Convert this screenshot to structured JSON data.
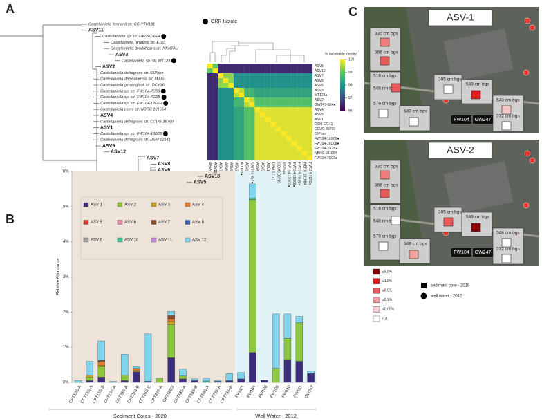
{
  "panel_labels": [
    "A",
    "B",
    "C"
  ],
  "tree": {
    "legend": "ORR Isolate",
    "leaves": [
      {
        "text": "Castellaniella fermenti str. CC-YTH191",
        "color": "#222222",
        "orr": false
      },
      {
        "text": "ASV11",
        "color": "#c58bd8",
        "orr": false
      },
      {
        "text": "Castellaniella sp. str. GW247-6E4",
        "color": "#222222",
        "orr": true
      },
      {
        "text": "Castellaniella hirudinis str. E103",
        "color": "#222222",
        "orr": false
      },
      {
        "text": "Castellaniella denitrificans str. NKNTAU",
        "color": "#222222",
        "orr": false
      },
      {
        "text": "ASV3",
        "color": "#e0a020",
        "orr": false
      },
      {
        "text": "Castellaniella sp. str. MT123",
        "color": "#222222",
        "orr": true
      },
      {
        "text": "ASV2",
        "color": "#8dc63f",
        "orr": false
      },
      {
        "text": "Castellaniella defragrans str. 65Phen",
        "color": "#222222",
        "orr": false
      },
      {
        "text": "Castellaniella daejeonensis str. MJ06",
        "color": "#222222",
        "orr": false
      },
      {
        "text": "Castellaniella ginsengisoli str. DCY36",
        "color": "#222222",
        "orr": false
      },
      {
        "text": "Castellaniella sp. str. FW104-7C03",
        "color": "#222222",
        "orr": true
      },
      {
        "text": "Castellaniella sp. str. FW104-7G2B",
        "color": "#222222",
        "orr": true
      },
      {
        "text": "Castellaniella sp. str. FW104-12G02",
        "color": "#222222",
        "orr": true
      },
      {
        "text": "Castellaniella caeni str. NBRC 101664",
        "color": "#222222",
        "orr": false
      },
      {
        "text": "ASV4",
        "color": "#e87a2a",
        "orr": false
      },
      {
        "text": "Castellaniella defragrans str. CCUG 39790",
        "color": "#222222",
        "orr": false
      },
      {
        "text": "ASV1",
        "color": "#3b2d7a",
        "orr": false
      },
      {
        "text": "Castellaniella sp. str. FW104-16D08",
        "color": "#222222",
        "orr": true
      },
      {
        "text": "Castellaniella defragrans str. DSM 12141",
        "color": "#222222",
        "orr": false
      },
      {
        "text": "ASV9",
        "color": "#a0a0a0",
        "orr": false
      },
      {
        "text": "ASV12",
        "color": "#7fd3ea",
        "orr": false
      },
      {
        "text": "ASV7",
        "color": "#8b4a2b",
        "orr": false
      },
      {
        "text": "ASV8",
        "color": "#3f5fa8",
        "orr": false
      },
      {
        "text": "ASV6",
        "color": "#e889a8",
        "orr": false
      },
      {
        "text": "ASV10",
        "color": "#3fc6a0",
        "orr": false
      },
      {
        "text": "ASV5",
        "color": "#e53935",
        "orr": false
      }
    ]
  },
  "heatmap": {
    "type": "heatmap",
    "title": "% nucleotide identity",
    "zlim": [
      96,
      100
    ],
    "zticks": [
      96,
      97,
      98,
      99,
      100
    ],
    "labels": [
      "ASV5",
      "ASV10",
      "ASV7",
      "ASV8",
      "ASV6",
      "ASV3",
      "MT123●",
      "ASV2",
      "GW247-6E4●",
      "ASV4",
      "ASV9",
      "ASV1",
      "DSM 12141",
      "CCUG 39790",
      "65Phen",
      "FW104-12G02●",
      "FW104-16D08●",
      "FW104-7G2B●",
      "NBRC 101664",
      "FW104-7C03●"
    ],
    "label_colors": [
      "#e53935",
      "#3fc6a0",
      "#8b4a2b",
      "#3f5fa8",
      "#e889a8",
      "#e0a020",
      "#222222",
      "#8dc63f",
      "#222222",
      "#e87a2a",
      "#a0a0a0",
      "#3b2d7a",
      "#222222",
      "#222222",
      "#222222",
      "#222222",
      "#222222",
      "#222222",
      "#222222",
      "#222222"
    ],
    "values": [
      [
        100,
        99,
        96.5,
        96.5,
        96.5,
        96.5,
        96.5,
        96.5,
        96.5,
        96.5,
        96.5,
        96.5,
        96.5,
        96.5,
        96.5,
        96.5,
        96.5,
        96.5,
        96.5,
        96.5
      ],
      [
        99,
        100,
        96.5,
        96.5,
        96.5,
        96.5,
        96.5,
        96.5,
        96.5,
        96.5,
        96.5,
        96.5,
        96.5,
        96.5,
        96.5,
        96.5,
        96.5,
        96.5,
        96.5,
        96.5
      ],
      [
        96.5,
        96.5,
        100,
        99.3,
        99.3,
        98,
        98,
        98,
        98,
        98,
        98,
        98,
        98,
        98,
        98,
        98,
        98,
        98,
        98,
        98
      ],
      [
        96.5,
        96.5,
        99.3,
        100,
        99.3,
        98,
        98,
        98,
        98,
        98,
        98,
        98,
        98,
        98,
        98,
        98,
        98,
        98,
        98,
        98
      ],
      [
        96.5,
        96.5,
        99.3,
        99.3,
        100,
        98,
        98,
        98,
        98,
        98,
        98,
        98,
        98,
        98,
        98,
        98,
        98,
        98,
        98,
        98
      ],
      [
        96.5,
        96.5,
        98,
        98,
        98,
        100,
        99.6,
        98.6,
        98.6,
        98.3,
        98.3,
        98.3,
        98.3,
        98.3,
        98.3,
        98.3,
        98.3,
        98.3,
        98.3,
        98.3
      ],
      [
        96.5,
        96.5,
        98,
        98,
        98,
        99.6,
        100,
        98.6,
        98.6,
        98.3,
        98.3,
        98.3,
        98.3,
        98.3,
        98.3,
        98.3,
        98.3,
        98.3,
        98.3,
        98.3
      ],
      [
        96.5,
        96.5,
        98,
        98,
        98,
        98.6,
        98.6,
        100,
        99.6,
        98.8,
        98.8,
        98.8,
        98.8,
        98.8,
        98.8,
        98.8,
        98.8,
        98.8,
        98.8,
        98.8
      ],
      [
        96.5,
        96.5,
        98,
        98,
        98,
        98.6,
        98.6,
        99.6,
        100,
        98.8,
        98.8,
        98.8,
        98.8,
        98.8,
        98.8,
        98.8,
        98.8,
        98.8,
        98.8,
        98.8
      ],
      [
        96.5,
        96.5,
        98,
        98,
        98,
        98.3,
        98.3,
        98.8,
        98.8,
        100,
        99.8,
        99.8,
        99.8,
        99.8,
        99.8,
        99.8,
        99.8,
        99.8,
        99.8,
        99.8
      ],
      [
        96.5,
        96.5,
        98,
        98,
        98,
        98.3,
        98.3,
        98.8,
        98.8,
        99.8,
        100,
        99.8,
        99.8,
        99.8,
        99.8,
        99.8,
        99.8,
        99.8,
        99.8,
        99.8
      ],
      [
        96.5,
        96.5,
        98,
        98,
        98,
        98.3,
        98.3,
        98.8,
        98.8,
        99.8,
        99.8,
        100,
        99.8,
        99.8,
        99.8,
        99.8,
        99.8,
        99.8,
        99.8,
        99.8
      ],
      [
        96.5,
        96.5,
        98,
        98,
        98,
        98.3,
        98.3,
        98.8,
        98.8,
        99.8,
        99.8,
        99.8,
        100,
        99.8,
        99.8,
        99.8,
        99.8,
        99.8,
        99.8,
        99.8
      ],
      [
        96.5,
        96.5,
        98,
        98,
        98,
        98.3,
        98.3,
        98.8,
        98.8,
        99.8,
        99.8,
        99.8,
        99.8,
        100,
        99.8,
        99.8,
        99.8,
        99.8,
        99.8,
        99.8
      ],
      [
        96.5,
        96.5,
        98,
        98,
        98,
        98.3,
        98.3,
        98.8,
        98.8,
        99.8,
        99.8,
        99.8,
        99.8,
        99.8,
        100,
        99.8,
        99.8,
        99.8,
        99.8,
        99.8
      ],
      [
        96.5,
        96.5,
        98,
        98,
        98,
        98.3,
        98.3,
        98.8,
        98.8,
        99.8,
        99.8,
        99.8,
        99.8,
        99.8,
        99.8,
        100,
        99.8,
        99.8,
        99.8,
        99.8
      ],
      [
        96.5,
        96.5,
        98,
        98,
        98,
        98.3,
        98.3,
        98.8,
        98.8,
        99.8,
        99.8,
        99.8,
        99.8,
        99.8,
        99.8,
        99.8,
        100,
        99.8,
        99.8,
        99.8
      ],
      [
        96.5,
        96.5,
        98,
        98,
        98,
        98.3,
        98.3,
        98.8,
        98.8,
        99.8,
        99.8,
        99.8,
        99.8,
        99.8,
        99.8,
        99.8,
        99.8,
        100,
        99.8,
        99.8
      ],
      [
        96.5,
        96.5,
        98,
        98,
        98,
        98.3,
        98.3,
        98.8,
        98.8,
        99.8,
        99.8,
        99.8,
        99.8,
        99.8,
        99.8,
        99.8,
        99.8,
        99.8,
        100,
        99.8
      ],
      [
        96.5,
        96.5,
        98,
        98,
        98,
        98.3,
        98.3,
        98.8,
        98.8,
        99.8,
        99.8,
        99.8,
        99.8,
        99.8,
        99.8,
        99.8,
        99.8,
        99.8,
        99.8,
        100
      ]
    ]
  },
  "chart_data": {
    "type": "stacked_bar",
    "ylabel": "Relative Abundance",
    "ylim": [
      0,
      6
    ],
    "yticks": [
      {
        "value": 0,
        "label": "0%"
      },
      {
        "value": 1,
        "label": "1%"
      },
      {
        "value": 2,
        "label": "2%"
      },
      {
        "value": 3,
        "label": "3%"
      },
      {
        "value": 4,
        "label": "4%"
      },
      {
        "value": 5,
        "label": "5%"
      },
      {
        "value": 6,
        "label": "6%"
      }
    ],
    "categories": [
      "CPT10S-A",
      "CPT15S-A",
      "CPT15S-B",
      "CPT19S-A",
      "CPT28S-A",
      "CPT28S-B",
      "CPT26S-C",
      "CPT32S-A",
      "CPT56CS",
      "CPT63S-A",
      "CPT63S-B",
      "CPT69S-A",
      "CPT73S-A",
      "CPT73S-B",
      "FW021",
      "FW104",
      "FW106",
      "FW109",
      "FW610",
      "FW511",
      "GW247"
    ],
    "groups": [
      {
        "label": "Sediment Cores - 2020",
        "count": 14,
        "color": "#ede3d9"
      },
      {
        "label": "Well Water - 2012",
        "count": 7,
        "color": "#e2f3f5"
      }
    ],
    "series": [
      {
        "name": "ASV 1",
        "color": "#3b2d7a",
        "values": [
          0,
          0.05,
          0.15,
          0,
          0.05,
          0.3,
          0.03,
          0,
          0.7,
          0.1,
          0.05,
          0,
          0.03,
          0.05,
          0.1,
          0.85,
          0.06,
          0,
          0.65,
          0.6,
          0.25
        ]
      },
      {
        "name": "ASV 2",
        "color": "#8dc63f",
        "values": [
          0,
          0.1,
          0.3,
          0,
          0.15,
          0,
          0,
          0.12,
          0.95,
          0.08,
          0,
          0,
          0,
          0,
          0,
          4.35,
          0,
          0.4,
          0.6,
          1.1,
          0
        ]
      },
      {
        "name": "ASV 3",
        "color": "#c9a227",
        "values": [
          0,
          0.05,
          0.03,
          0,
          0,
          0.05,
          0,
          0,
          0.1,
          0,
          0,
          0,
          0,
          0,
          0,
          0,
          0,
          0,
          0,
          0,
          0
        ]
      },
      {
        "name": "ASV 4",
        "color": "#e87a2a",
        "values": [
          0,
          0,
          0.1,
          0,
          0,
          0.05,
          0,
          0,
          0.05,
          0,
          0,
          0,
          0,
          0,
          0,
          0,
          0,
          0,
          0,
          0,
          0
        ]
      },
      {
        "name": "ASV 5",
        "color": "#e53935",
        "values": [
          0,
          0,
          0,
          0,
          0,
          0,
          0,
          0,
          0,
          0,
          0,
          0,
          0,
          0,
          0,
          0,
          0,
          0,
          0,
          0,
          0
        ]
      },
      {
        "name": "ASV 6",
        "color": "#e889a8",
        "values": [
          0,
          0,
          0,
          0,
          0,
          0,
          0,
          0,
          0,
          0,
          0,
          0,
          0,
          0,
          0,
          0,
          0,
          0,
          0,
          0,
          0
        ]
      },
      {
        "name": "ASV 7",
        "color": "#8b4a2b",
        "values": [
          0,
          0,
          0.05,
          0,
          0,
          0,
          0,
          0,
          0.1,
          0,
          0,
          0,
          0,
          0,
          0,
          0,
          0,
          0,
          0,
          0,
          0
        ]
      },
      {
        "name": "ASV 8",
        "color": "#3f5fa8",
        "values": [
          0,
          0,
          0,
          0,
          0,
          0,
          0,
          0,
          0,
          0,
          0,
          0,
          0,
          0,
          0,
          0,
          0,
          0,
          0,
          0,
          0
        ]
      },
      {
        "name": "ASV 9",
        "color": "#a0a0a0",
        "values": [
          0,
          0,
          0,
          0,
          0,
          0,
          0,
          0,
          0,
          0,
          0,
          0,
          0,
          0,
          0,
          0,
          0,
          0,
          0,
          0,
          0
        ]
      },
      {
        "name": "ASV 10",
        "color": "#3fc6a0",
        "values": [
          0,
          0,
          0,
          0,
          0,
          0,
          0,
          0,
          0,
          0,
          0,
          0.04,
          0,
          0,
          0,
          0.05,
          0,
          0,
          0,
          0,
          0
        ]
      },
      {
        "name": "ASV 11",
        "color": "#c58bd8",
        "values": [
          0,
          0,
          0,
          0,
          0,
          0,
          0,
          0,
          0,
          0,
          0,
          0,
          0,
          0,
          0,
          0,
          0,
          0,
          0,
          0,
          0
        ]
      },
      {
        "name": "ASV 12",
        "color": "#7fd3ea",
        "values": [
          0.05,
          0.4,
          0.55,
          0.03,
          0.6,
          0.05,
          1.35,
          0,
          0.12,
          0.2,
          0.05,
          0.08,
          0.03,
          0.2,
          0.18,
          0.4,
          0,
          1.55,
          0.7,
          0.18,
          0.08
        ]
      }
    ]
  },
  "maps": [
    {
      "title": "ASV-1",
      "sites": [
        "FW104",
        "GW247"
      ],
      "boxes": [
        {
          "label": "335 cm bgs",
          "color": "#ef7b7b"
        },
        {
          "label": "366 cm bgs",
          "color": "#e85a5a"
        },
        {
          "label": "518 cm bgs"
        },
        {
          "label": "548 cm bgs",
          "color": "#e85a5a"
        },
        {
          "label": "579 cm bgs",
          "color": "#ffffff"
        },
        {
          "label": "305 cm bgs",
          "color": "#ffffff"
        },
        {
          "label": "549 cm bgs",
          "color": "#e01a1a"
        },
        {
          "label": "549 cm bgs",
          "color": "#ffffff"
        },
        {
          "label": "548 cm bgs",
          "color": "#f7c6c6"
        },
        {
          "label": "572 cm bgs",
          "color": "#ffffff"
        }
      ]
    },
    {
      "title": "ASV-2",
      "sites": [
        "FW104",
        "GW247"
      ],
      "boxes": [
        {
          "label": "335 cm bgs",
          "color": "#ef7b7b"
        },
        {
          "label": "366 cm bgs",
          "color": "#e85a5a"
        },
        {
          "label": "518 cm bgs"
        },
        {
          "label": "548 cm bgs",
          "color": "#ffffff"
        },
        {
          "label": "579 cm bgs",
          "color": "#ffffff"
        },
        {
          "label": "305 cm bgs",
          "color": "#e85a5a"
        },
        {
          "label": "549 cm bgs",
          "color": "#8b0000"
        },
        {
          "label": "549 cm bgs",
          "color": "#f2a0a0"
        },
        {
          "label": "548 cm bgs",
          "color": "#ffffff"
        },
        {
          "label": "572 cm bgs",
          "color": "#ffffff"
        }
      ]
    }
  ],
  "map_legend": {
    "levels": [
      {
        "label": "≤5.0%",
        "color": "#8b0000"
      },
      {
        "label": "≤1.0%",
        "color": "#e01a1a"
      },
      {
        "label": "≤0.5%",
        "color": "#e85a5a"
      },
      {
        "label": "≤0.1%",
        "color": "#f2a0a0"
      },
      {
        "label": "<0.05%",
        "color": "#f8d0d0"
      },
      {
        "label": "n.d.",
        "color": "#ffffff"
      }
    ],
    "sediment": "sediment core - 2019",
    "well": "well water - 2012"
  }
}
